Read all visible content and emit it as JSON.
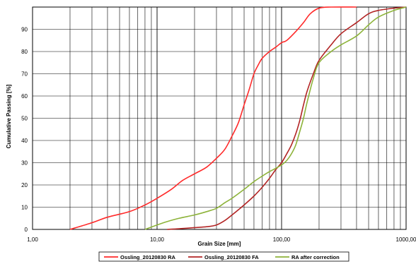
{
  "chart_data": {
    "type": "line",
    "xscale": "log",
    "xlim": [
      1,
      1000
    ],
    "ylim": [
      0,
      100
    ],
    "xticks": [
      1,
      10,
      100,
      1000
    ],
    "xtick_labels": [
      "1,00",
      "10,00",
      "100,00",
      "1000,00"
    ],
    "yticks": [
      0,
      10,
      20,
      30,
      40,
      50,
      60,
      70,
      80,
      90
    ],
    "ytick_labels": [
      "0",
      "10",
      "20",
      "30",
      "40",
      "50",
      "60",
      "70",
      "80",
      "90"
    ],
    "xlabel": "Grain Size [mm]",
    "ylabel": "Cumulative Passing [%]",
    "grid": {
      "vertical_minor": true,
      "horizontal": true
    },
    "legend_position": "bottom",
    "series": [
      {
        "name": "Ossling_20120830 RA",
        "color": "#ff2a2a",
        "points": [
          [
            2,
            0
          ],
          [
            3,
            3
          ],
          [
            4,
            5.5
          ],
          [
            6,
            8
          ],
          [
            8,
            11
          ],
          [
            10,
            14
          ],
          [
            13,
            18
          ],
          [
            16,
            22
          ],
          [
            20,
            25
          ],
          [
            25,
            28
          ],
          [
            30,
            32
          ],
          [
            35,
            36
          ],
          [
            40,
            42
          ],
          [
            45,
            48
          ],
          [
            50,
            56
          ],
          [
            55,
            63
          ],
          [
            60,
            70
          ],
          [
            65,
            74
          ],
          [
            70,
            77
          ],
          [
            80,
            80
          ],
          [
            90,
            82
          ],
          [
            100,
            84
          ],
          [
            110,
            85
          ],
          [
            130,
            89
          ],
          [
            150,
            93
          ],
          [
            170,
            97
          ],
          [
            200,
            99.5
          ],
          [
            250,
            100
          ],
          [
            400,
            100
          ]
        ]
      },
      {
        "name": "Ossling_20120830 FA",
        "color": "#b22424",
        "points": [
          [
            12,
            0
          ],
          [
            15,
            0.3
          ],
          [
            20,
            0.8
          ],
          [
            25,
            1.2
          ],
          [
            30,
            2
          ],
          [
            35,
            4
          ],
          [
            40,
            6.5
          ],
          [
            50,
            11
          ],
          [
            60,
            15
          ],
          [
            70,
            19
          ],
          [
            80,
            23
          ],
          [
            90,
            27
          ],
          [
            100,
            30
          ],
          [
            110,
            34
          ],
          [
            120,
            38
          ],
          [
            130,
            43
          ],
          [
            140,
            49
          ],
          [
            150,
            56
          ],
          [
            160,
            62
          ],
          [
            180,
            70
          ],
          [
            200,
            76
          ],
          [
            250,
            83
          ],
          [
            300,
            88
          ],
          [
            400,
            93
          ],
          [
            500,
            97
          ],
          [
            600,
            98.5
          ],
          [
            800,
            99.5
          ],
          [
            1000,
            100
          ]
        ]
      },
      {
        "name": "RA after correction",
        "color": "#8db33a",
        "points": [
          [
            8,
            0
          ],
          [
            10,
            2
          ],
          [
            12,
            3.5
          ],
          [
            15,
            5
          ],
          [
            20,
            6.5
          ],
          [
            25,
            8
          ],
          [
            30,
            9.5
          ],
          [
            35,
            12
          ],
          [
            40,
            14
          ],
          [
            50,
            18
          ],
          [
            60,
            21.5
          ],
          [
            70,
            24
          ],
          [
            80,
            26
          ],
          [
            90,
            27.5
          ],
          [
            100,
            29
          ],
          [
            110,
            31
          ],
          [
            120,
            34
          ],
          [
            130,
            38
          ],
          [
            140,
            44
          ],
          [
            150,
            50
          ],
          [
            160,
            57
          ],
          [
            180,
            68
          ],
          [
            200,
            75
          ],
          [
            250,
            80
          ],
          [
            300,
            83
          ],
          [
            400,
            87
          ],
          [
            500,
            92
          ],
          [
            600,
            95.5
          ],
          [
            800,
            98.5
          ],
          [
            1000,
            100
          ]
        ]
      }
    ]
  }
}
